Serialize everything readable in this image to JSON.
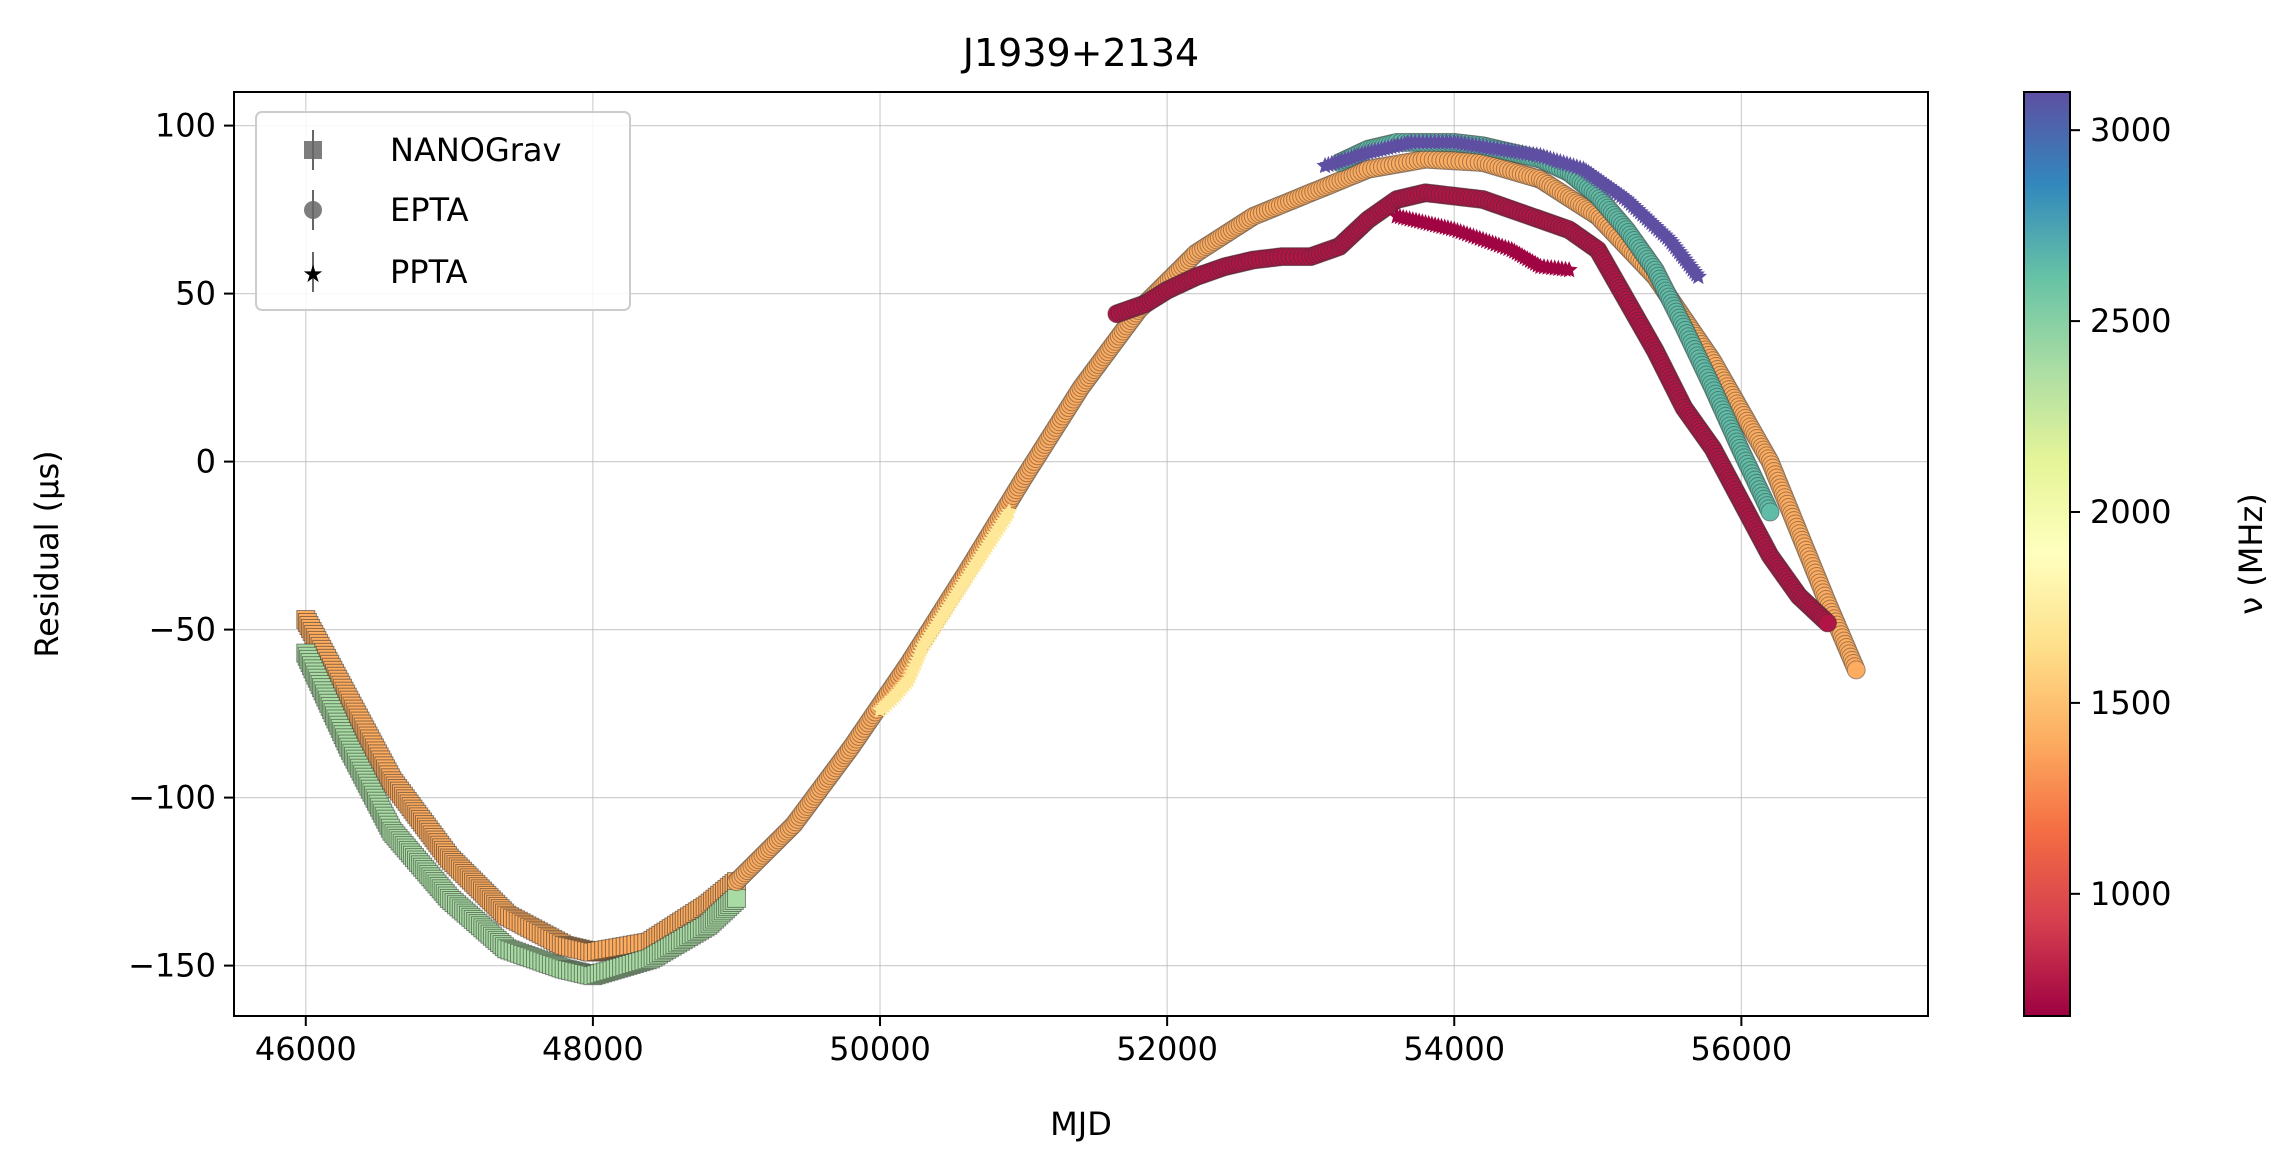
{
  "chart_data": {
    "type": "scatter",
    "title": "J1939+2134",
    "xlabel": "MJD",
    "ylabel": "Residual (μs)",
    "xlim": [
      45500,
      57300
    ],
    "ylim": [
      -165,
      110
    ],
    "xticks": [
      46000,
      48000,
      50000,
      52000,
      54000,
      56000
    ],
    "xtick_labels": [
      "46000",
      "48000",
      "50000",
      "52000",
      "54000",
      "56000"
    ],
    "yticks": [
      -150,
      -100,
      -50,
      0,
      50,
      100
    ],
    "ytick_labels": [
      "−150",
      "−100",
      "−50",
      "0",
      "50",
      "100"
    ],
    "grid": true,
    "legend": {
      "placement": "top-left",
      "entries": [
        {
          "label": "NANOGrav",
          "marker": "square"
        },
        {
          "label": "EPTA",
          "marker": "circle"
        },
        {
          "label": "PPTA",
          "marker": "star"
        }
      ]
    },
    "colorbar": {
      "label": "ν (MHz)",
      "range": [
        680,
        3100
      ],
      "ticks": [
        1000,
        1500,
        2000,
        2500,
        3000
      ],
      "tick_labels": [
        "1000",
        "1500",
        "2000",
        "2500",
        "3000"
      ],
      "colormap": "Spectral",
      "colormap_stops": [
        "#9e0142",
        "#d53e4f",
        "#f46d43",
        "#fdae61",
        "#fee08b",
        "#ffffbf",
        "#e6f598",
        "#abdda4",
        "#66c2a5",
        "#3288bd",
        "#5e4fa2"
      ]
    },
    "series": [
      {
        "name": "NANOGrav",
        "freq_mhz": 1400,
        "x": [
          46000,
          46300,
          46600,
          47000,
          47400,
          47800,
          48000,
          48400,
          48800,
          49000
        ],
        "y": [
          -47,
          -71,
          -95,
          -118,
          -135,
          -144,
          -146,
          -143,
          -132,
          -125
        ]
      },
      {
        "name": "NANOGrav",
        "freq_mhz": 2380,
        "x": [
          46000,
          46300,
          46600,
          47000,
          47400,
          47800,
          48000,
          48400,
          48800,
          49000
        ],
        "y": [
          -57,
          -85,
          -110,
          -130,
          -145,
          -151,
          -153,
          -148,
          -138,
          -130
        ]
      },
      {
        "name": "EPTA",
        "freq_mhz": 1400,
        "x": [
          49000,
          49400,
          49800,
          50200,
          50600,
          51000,
          51400,
          51800,
          52200,
          52600,
          53000,
          53400,
          53800,
          54200,
          54600,
          55000,
          55400,
          55800,
          56200,
          56600,
          56800
        ],
        "y": [
          -125,
          -108,
          -85,
          -60,
          -33,
          -5,
          22,
          45,
          62,
          73,
          80,
          87,
          90,
          89,
          84,
          73,
          55,
          30,
          0,
          -42,
          -62
        ]
      },
      {
        "name": "EPTA",
        "freq_mhz": 760,
        "x": [
          51650,
          51850,
          52000,
          52200,
          52400,
          52600,
          52800,
          53000,
          53200,
          53400,
          53600,
          53800,
          54000,
          54200,
          54400,
          54600,
          54800,
          55000,
          55200,
          55400,
          55600,
          55800,
          56000,
          56200,
          56400,
          56600
        ],
        "y": [
          44,
          47,
          51,
          55,
          58,
          60,
          61,
          61,
          64,
          72,
          78,
          80,
          79,
          78,
          75,
          72,
          69,
          63,
          48,
          33,
          16,
          4,
          -12,
          -28,
          -40,
          -48
        ]
      },
      {
        "name": "EPTA",
        "freq_mhz": 2640,
        "x": [
          53200,
          53400,
          53600,
          53800,
          54000,
          54200,
          54400,
          54600,
          54800,
          55000,
          55200,
          55400,
          55600,
          55800,
          56000,
          56200
        ],
        "y": [
          89,
          93,
          95,
          95,
          95,
          94,
          92,
          90,
          86,
          79,
          69,
          57,
          40,
          22,
          3,
          -15
        ]
      },
      {
        "name": "PPTA",
        "freq_mhz": 3100,
        "x": [
          53100,
          53400,
          53700,
          54000,
          54300,
          54600,
          54900,
          55200,
          55500,
          55700
        ],
        "y": [
          88,
          92,
          95,
          95,
          93,
          91,
          87,
          78,
          66,
          55
        ]
      },
      {
        "name": "PPTA",
        "freq_mhz": 690,
        "x": [
          53600,
          53800,
          54000,
          54200,
          54400,
          54600,
          54800
        ],
        "y": [
          73,
          71,
          69,
          66,
          63,
          58,
          57
        ]
      },
      {
        "name": "PPTA",
        "freq_mhz": 1700,
        "x": [
          50000,
          50100,
          50200,
          50300,
          50900
        ],
        "y": [
          -74,
          -70,
          -65,
          -55,
          -15
        ]
      }
    ]
  }
}
